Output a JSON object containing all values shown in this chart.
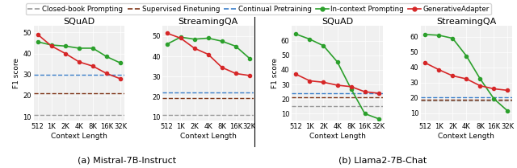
{
  "x_labels": [
    "512",
    "1K",
    "2K",
    "4K",
    "8K",
    "16K",
    "32K"
  ],
  "x_vals": [
    0,
    1,
    2,
    3,
    4,
    5,
    6
  ],
  "mistral_squad": {
    "title": "SQuAD",
    "in_context": [
      45.5,
      44.0,
      43.5,
      42.5,
      42.5,
      38.5,
      35.5
    ],
    "gen_adapter": [
      49.0,
      43.5,
      40.0,
      36.0,
      34.0,
      30.5,
      28.0
    ],
    "closed_book": 11.0,
    "supervised_ft": 21.0,
    "continual_pre": 30.0,
    "ylim": [
      8,
      53
    ],
    "yticks": [
      10,
      20,
      30,
      40,
      50
    ]
  },
  "mistral_streamingqa": {
    "title": "StreamingQA",
    "in_context": [
      46.0,
      49.5,
      48.5,
      49.0,
      47.5,
      45.0,
      39.0
    ],
    "gen_adapter": [
      51.5,
      49.0,
      44.0,
      41.0,
      34.5,
      31.5,
      30.5
    ],
    "closed_book": 11.0,
    "supervised_ft": 19.5,
    "continual_pre": 22.0,
    "ylim": [
      8,
      55
    ],
    "yticks": [
      10,
      20,
      30,
      40,
      50
    ]
  },
  "llama_squad": {
    "title": "SQuAD",
    "in_context": [
      64.5,
      61.0,
      56.5,
      45.5,
      27.0,
      10.0,
      6.5
    ],
    "gen_adapter": [
      37.0,
      32.5,
      31.5,
      29.5,
      28.5,
      25.0,
      24.0
    ],
    "closed_book": 15.0,
    "supervised_ft": 21.0,
    "continual_pre": 24.0,
    "ylim": [
      5,
      70
    ],
    "yticks": [
      10,
      20,
      30,
      40,
      50,
      60
    ]
  },
  "llama_streamingqa": {
    "title": "StreamingQA",
    "in_context": [
      61.5,
      61.0,
      59.0,
      47.5,
      32.5,
      19.5,
      11.5
    ],
    "gen_adapter": [
      43.0,
      38.5,
      34.5,
      32.5,
      28.0,
      26.0,
      25.0
    ],
    "closed_book": 18.5,
    "supervised_ft": 19.0,
    "continual_pre": 20.5,
    "ylim": [
      5,
      67
    ],
    "yticks": [
      10,
      20,
      30,
      40,
      50,
      60
    ]
  },
  "colors": {
    "closed_book": "#999999",
    "supervised_ft": "#7f3517",
    "continual_pre": "#3a7ec8",
    "in_context": "#2ca02c",
    "gen_adapter": "#d62728"
  },
  "bg_color": "#f0f0f0",
  "subtitle_a": "(a) Mistral-7B-Instruct",
  "subtitle_b": "(b) Llama2-7B-Chat",
  "legend_entries": [
    {
      "label": "Closed-book Prompting",
      "color": "#999999",
      "linestyle": "--",
      "marker": null
    },
    {
      "label": "Supervised Finetuning",
      "color": "#7f3517",
      "linestyle": "--",
      "marker": null
    },
    {
      "label": "Continual Pretraining",
      "color": "#3a7ec8",
      "linestyle": "--",
      "marker": null
    },
    {
      "label": "In-context Prompting",
      "color": "#2ca02c",
      "linestyle": "-",
      "marker": "o"
    },
    {
      "label": "GenerativeAdapter",
      "color": "#d62728",
      "linestyle": "-",
      "marker": "o"
    }
  ]
}
